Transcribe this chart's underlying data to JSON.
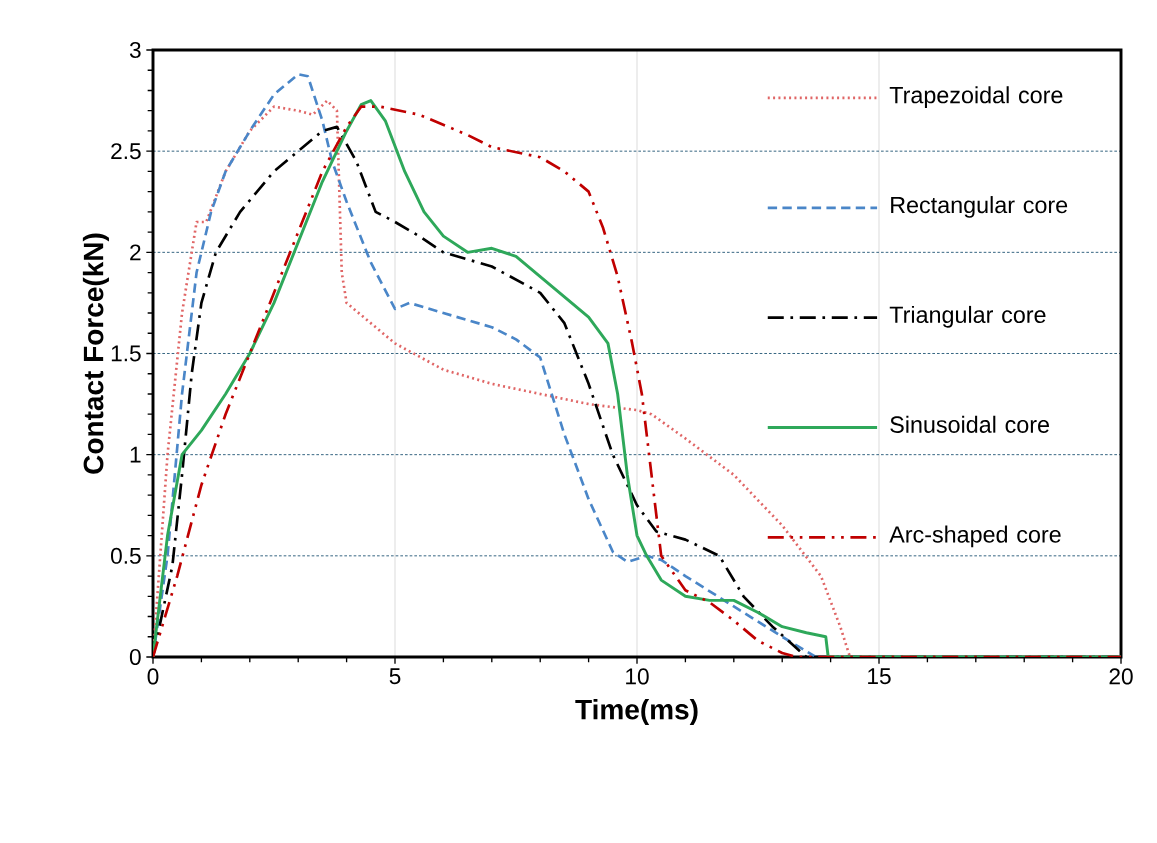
{
  "chart_data": {
    "type": "line",
    "xlabel": "Time(ms)",
    "ylabel": "Contact Force(kN)",
    "xlim": [
      0,
      20
    ],
    "xticks": [
      0,
      5,
      10,
      15,
      20
    ],
    "ylim": [
      0,
      3
    ],
    "yticks": [
      0,
      0.5,
      1,
      1.5,
      2,
      2.5,
      3
    ],
    "grid": true,
    "legend": "top right",
    "series": [
      {
        "name": "Trapezoidal core",
        "color": "#e06666",
        "line_style": "dotted",
        "x": [
          0,
          0.3,
          0.6,
          0.8,
          0.9,
          1.1,
          1.5,
          2,
          2.5,
          3,
          3.3,
          3.6,
          3.8,
          3.9,
          4.0,
          4.5,
          5,
          6,
          7,
          8,
          9,
          10,
          10.3,
          11,
          12,
          13,
          13.8,
          14.2,
          14.4,
          20
        ],
        "values": [
          0,
          1.0,
          1.7,
          2.0,
          2.15,
          2.15,
          2.4,
          2.6,
          2.72,
          2.7,
          2.68,
          2.75,
          2.7,
          1.9,
          1.75,
          1.65,
          1.55,
          1.42,
          1.35,
          1.3,
          1.25,
          1.22,
          1.2,
          1.08,
          0.9,
          0.65,
          0.4,
          0.15,
          0,
          0
        ]
      },
      {
        "name": "Rectangular core",
        "color": "#4a86c8",
        "line_style": "dashed",
        "x": [
          0,
          0.3,
          0.6,
          0.9,
          1.2,
          1.5,
          2,
          2.5,
          3,
          3.2,
          3.5,
          3.7,
          4,
          4.5,
          5,
          5.3,
          6,
          7,
          7.5,
          8,
          8.5,
          9,
          9.5,
          9.8,
          10.2,
          10.5,
          11,
          12,
          13,
          13.7,
          20
        ],
        "values": [
          0,
          0.5,
          1.3,
          1.9,
          2.2,
          2.4,
          2.6,
          2.78,
          2.88,
          2.87,
          2.65,
          2.45,
          2.25,
          1.95,
          1.72,
          1.75,
          1.7,
          1.63,
          1.57,
          1.48,
          1.1,
          0.78,
          0.52,
          0.47,
          0.5,
          0.48,
          0.4,
          0.25,
          0.1,
          0,
          0
        ]
      },
      {
        "name": "Triangular core",
        "color": "#000000",
        "line_style": "dashdot",
        "x": [
          0,
          0.4,
          0.6,
          0.8,
          1,
          1.3,
          1.8,
          2.5,
          3,
          3.5,
          3.8,
          4.2,
          4.6,
          5,
          5.5,
          6,
          7,
          8,
          8.5,
          9,
          9.5,
          10,
          10.4,
          11,
          11.7,
          12.2,
          12.8,
          13.5,
          20
        ],
        "values": [
          0,
          0.45,
          0.9,
          1.4,
          1.75,
          2.0,
          2.2,
          2.4,
          2.5,
          2.6,
          2.62,
          2.45,
          2.2,
          2.15,
          2.08,
          2.0,
          1.93,
          1.8,
          1.65,
          1.35,
          1.0,
          0.75,
          0.62,
          0.58,
          0.5,
          0.3,
          0.15,
          0,
          0
        ]
      },
      {
        "name": "Sinusoidal core",
        "color": "#2ea85a",
        "line_style": "solid",
        "x": [
          0,
          0.3,
          0.6,
          1,
          1.5,
          2,
          2.5,
          3,
          3.5,
          4,
          4.3,
          4.5,
          4.8,
          5.2,
          5.6,
          6,
          6.5,
          7,
          7.5,
          8,
          8.5,
          9,
          9.4,
          9.6,
          9.8,
          10,
          10.2,
          10.5,
          11,
          11.5,
          12,
          12.5,
          13,
          13.5,
          13.9,
          13.95,
          20
        ],
        "values": [
          0,
          0.6,
          1.0,
          1.12,
          1.3,
          1.5,
          1.75,
          2.05,
          2.35,
          2.6,
          2.73,
          2.75,
          2.65,
          2.4,
          2.2,
          2.08,
          2.0,
          2.02,
          1.98,
          1.88,
          1.78,
          1.68,
          1.55,
          1.3,
          0.9,
          0.6,
          0.5,
          0.38,
          0.3,
          0.28,
          0.28,
          0.22,
          0.15,
          0.12,
          0.1,
          0,
          0
        ]
      },
      {
        "name": "Arc-shaped core",
        "color": "#c00000",
        "line_style": "dashdotdot",
        "x": [
          0,
          0.5,
          1,
          1.5,
          2,
          2.5,
          3,
          3.5,
          4,
          4.3,
          4.7,
          5.5,
          6.5,
          7,
          8,
          8.5,
          9,
          9.3,
          9.6,
          9.9,
          10.1,
          10.3,
          10.5,
          11,
          11.5,
          12,
          12.5,
          13,
          13.3,
          20
        ],
        "values": [
          0,
          0.4,
          0.85,
          1.2,
          1.5,
          1.8,
          2.1,
          2.4,
          2.62,
          2.72,
          2.72,
          2.68,
          2.58,
          2.52,
          2.47,
          2.4,
          2.3,
          2.12,
          1.88,
          1.55,
          1.3,
          0.9,
          0.5,
          0.33,
          0.27,
          0.18,
          0.08,
          0.02,
          0,
          0
        ]
      }
    ]
  }
}
